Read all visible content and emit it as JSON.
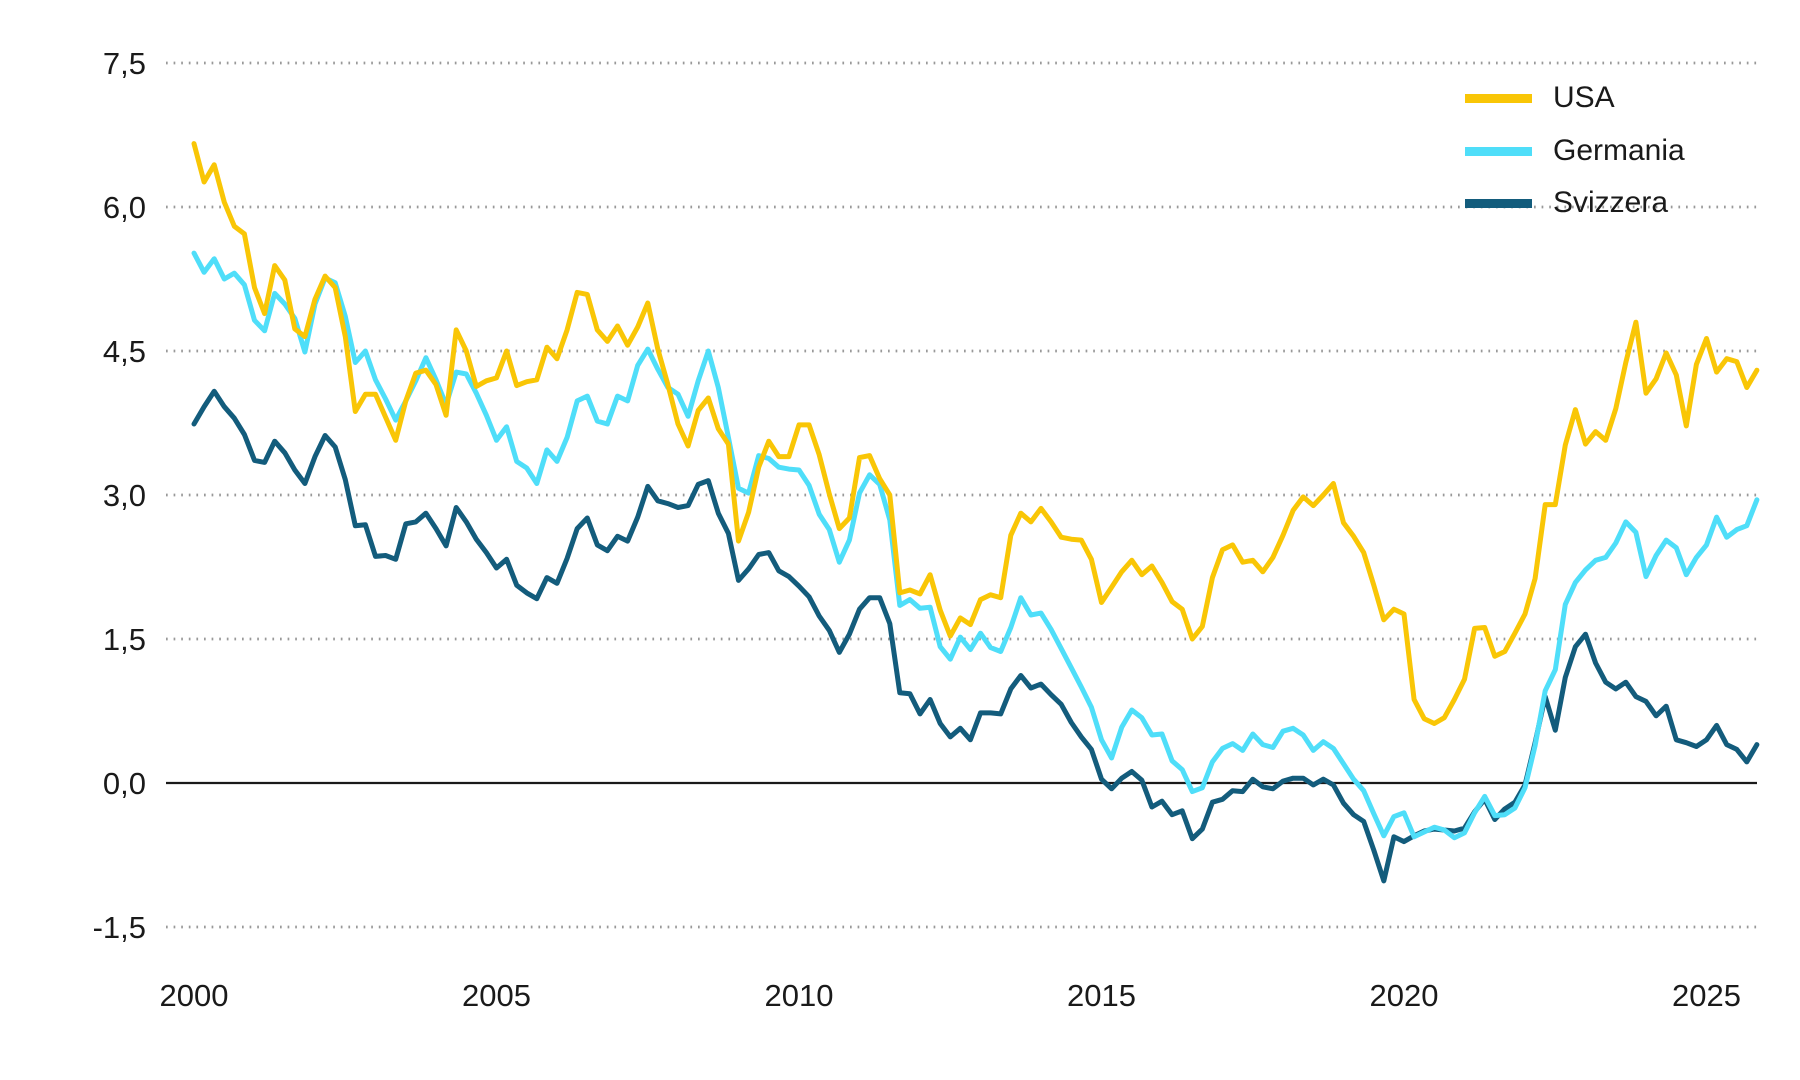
{
  "chart_data": {
    "type": "line",
    "x_start_year": 2000,
    "points_per_year": 6,
    "x_ticks": [
      2000,
      2005,
      2010,
      2015,
      2020,
      2025
    ],
    "x_tick_labels": [
      "2000",
      "2005",
      "2010",
      "2015",
      "2020",
      "2025"
    ],
    "y_ticks": [
      7.5,
      6.0,
      4.5,
      3.0,
      1.5,
      0.0,
      -1.5
    ],
    "y_tick_labels": [
      "7,5",
      "6,0",
      "4,5",
      "3,0",
      "1,5",
      "0,0",
      "-1,5"
    ],
    "ylim": [
      -1.5,
      7.5
    ],
    "grid": "dotted-horizontal",
    "zero_line": true,
    "legend_position": "top-right",
    "grid_color": "#999999",
    "axis_color": "#1a1a1a",
    "text_color": "#1a1a1a",
    "series": [
      {
        "name": "USA",
        "color": "#F9C606",
        "values": [
          6.66,
          6.26,
          6.44,
          6.05,
          5.8,
          5.72,
          5.16,
          4.89,
          5.39,
          5.24,
          4.73,
          4.65,
          5.04,
          5.28,
          5.16,
          4.65,
          3.87,
          4.05,
          4.05,
          3.81,
          3.57,
          3.98,
          4.27,
          4.3,
          4.15,
          3.83,
          4.72,
          4.5,
          4.13,
          4.19,
          4.22,
          4.5,
          4.14,
          4.18,
          4.2,
          4.54,
          4.42,
          4.72,
          5.11,
          5.09,
          4.72,
          4.6,
          4.76,
          4.56,
          4.75,
          5.0,
          4.52,
          4.15,
          3.74,
          3.51,
          3.88,
          4.01,
          3.69,
          3.53,
          2.52,
          2.82,
          3.29,
          3.56,
          3.4,
          3.4,
          3.73,
          3.73,
          3.42,
          3.01,
          2.65,
          2.76,
          3.39,
          3.41,
          3.17,
          3.0,
          1.98,
          2.01,
          1.97,
          2.17,
          1.8,
          1.53,
          1.72,
          1.65,
          1.91,
          1.96,
          1.93,
          2.58,
          2.81,
          2.72,
          2.86,
          2.72,
          2.56,
          2.54,
          2.53,
          2.33,
          1.88,
          2.04,
          2.2,
          2.32,
          2.17,
          2.26,
          2.09,
          1.89,
          1.81,
          1.5,
          1.63,
          2.14,
          2.43,
          2.48,
          2.3,
          2.32,
          2.2,
          2.35,
          2.58,
          2.84,
          2.98,
          2.89,
          3.0,
          3.12,
          2.71,
          2.57,
          2.4,
          2.06,
          1.7,
          1.81,
          1.76,
          0.87,
          0.67,
          0.62,
          0.68,
          0.87,
          1.08,
          1.61,
          1.62,
          1.32,
          1.37,
          1.56,
          1.76,
          2.13,
          2.9,
          2.9,
          3.52,
          3.89,
          3.53,
          3.66,
          3.57,
          3.9,
          4.38,
          4.8,
          4.06,
          4.21,
          4.48,
          4.25,
          3.72,
          4.36,
          4.63,
          4.28,
          4.42,
          4.39,
          4.12,
          4.3
        ]
      },
      {
        "name": "Germania",
        "color": "#4FDEF9",
        "values": [
          5.52,
          5.32,
          5.46,
          5.25,
          5.31,
          5.19,
          4.82,
          4.71,
          5.1,
          4.99,
          4.84,
          4.49,
          4.99,
          5.26,
          5.21,
          4.86,
          4.38,
          4.5,
          4.2,
          4.0,
          3.78,
          3.98,
          4.19,
          4.43,
          4.2,
          3.94,
          4.28,
          4.26,
          4.06,
          3.83,
          3.57,
          3.71,
          3.35,
          3.28,
          3.12,
          3.47,
          3.35,
          3.6,
          3.98,
          4.03,
          3.77,
          3.74,
          4.03,
          3.98,
          4.35,
          4.52,
          4.31,
          4.12,
          4.05,
          3.82,
          4.19,
          4.5,
          4.12,
          3.6,
          3.07,
          3.02,
          3.41,
          3.38,
          3.29,
          3.27,
          3.26,
          3.1,
          2.8,
          2.64,
          2.3,
          2.53,
          3.02,
          3.21,
          3.11,
          2.74,
          1.85,
          1.91,
          1.82,
          1.83,
          1.42,
          1.29,
          1.52,
          1.39,
          1.56,
          1.41,
          1.37,
          1.62,
          1.93,
          1.75,
          1.77,
          1.6,
          1.4,
          1.2,
          1.0,
          0.79,
          0.45,
          0.26,
          0.58,
          0.76,
          0.68,
          0.5,
          0.51,
          0.23,
          0.14,
          -0.09,
          -0.05,
          0.22,
          0.36,
          0.41,
          0.34,
          0.51,
          0.4,
          0.37,
          0.54,
          0.57,
          0.5,
          0.34,
          0.43,
          0.36,
          0.2,
          0.04,
          -0.08,
          -0.32,
          -0.55,
          -0.35,
          -0.31,
          -0.56,
          -0.51,
          -0.46,
          -0.49,
          -0.57,
          -0.52,
          -0.31,
          -0.14,
          -0.34,
          -0.33,
          -0.26,
          -0.05,
          0.39,
          0.96,
          1.18,
          1.86,
          2.09,
          2.22,
          2.32,
          2.35,
          2.5,
          2.72,
          2.61,
          2.15,
          2.37,
          2.53,
          2.45,
          2.17,
          2.35,
          2.48,
          2.77,
          2.56,
          2.64,
          2.68,
          2.95
        ]
      },
      {
        "name": "Svizzera",
        "color": "#135C7C",
        "values": [
          3.74,
          3.92,
          4.08,
          3.92,
          3.8,
          3.63,
          3.36,
          3.34,
          3.56,
          3.44,
          3.26,
          3.12,
          3.4,
          3.62,
          3.5,
          3.16,
          2.68,
          2.69,
          2.36,
          2.37,
          2.33,
          2.7,
          2.72,
          2.81,
          2.65,
          2.47,
          2.87,
          2.72,
          2.54,
          2.4,
          2.24,
          2.33,
          2.06,
          1.98,
          1.92,
          2.14,
          2.08,
          2.34,
          2.65,
          2.76,
          2.48,
          2.42,
          2.57,
          2.52,
          2.77,
          3.09,
          2.94,
          2.91,
          2.87,
          2.89,
          3.11,
          3.15,
          2.81,
          2.6,
          2.11,
          2.23,
          2.38,
          2.4,
          2.21,
          2.15,
          2.05,
          1.94,
          1.74,
          1.59,
          1.36,
          1.55,
          1.81,
          1.93,
          1.93,
          1.66,
          0.94,
          0.93,
          0.72,
          0.87,
          0.62,
          0.48,
          0.57,
          0.45,
          0.73,
          0.73,
          0.72,
          0.98,
          1.12,
          0.99,
          1.03,
          0.92,
          0.82,
          0.63,
          0.48,
          0.35,
          0.04,
          -0.06,
          0.05,
          0.12,
          0.03,
          -0.25,
          -0.19,
          -0.33,
          -0.29,
          -0.58,
          -0.48,
          -0.2,
          -0.17,
          -0.08,
          -0.09,
          0.04,
          -0.04,
          -0.06,
          0.02,
          0.05,
          0.05,
          -0.02,
          0.04,
          -0.02,
          -0.21,
          -0.33,
          -0.4,
          -0.7,
          -1.02,
          -0.56,
          -0.61,
          -0.55,
          -0.5,
          -0.48,
          -0.49,
          -0.5,
          -0.47,
          -0.3,
          -0.17,
          -0.38,
          -0.27,
          -0.2,
          -0.02,
          0.42,
          0.9,
          0.55,
          1.1,
          1.42,
          1.55,
          1.25,
          1.05,
          0.98,
          1.05,
          0.9,
          0.85,
          0.7,
          0.8,
          0.45,
          0.42,
          0.38,
          0.45,
          0.6,
          0.4,
          0.35,
          0.22,
          0.4
        ]
      }
    ]
  }
}
